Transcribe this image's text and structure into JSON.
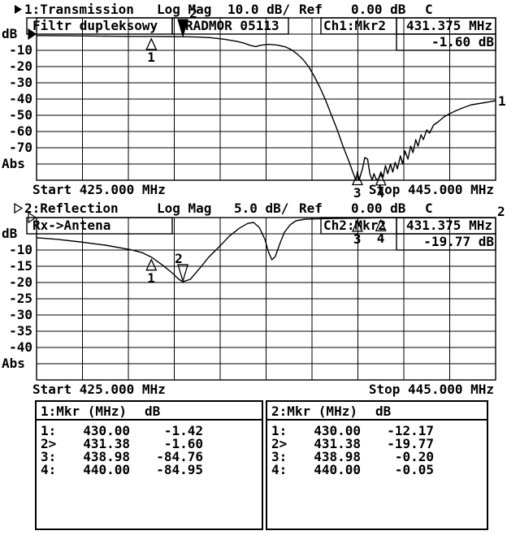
{
  "instrument": "network-analyzer-screen",
  "channels": [
    {
      "header": {
        "label": "1:Transmission",
        "scale": "Log Mag",
        "per_div": "10.0 dB/",
        "ref_label": "Ref",
        "ref_value": "0.00 dB",
        "cal": "C"
      },
      "title": "Filtr dupleksowy",
      "subtitle": "RADMOR 05113",
      "readout": {
        "source": "Ch1:Mkr2",
        "freq": "431.375 MHz",
        "value": "-1.60 dB"
      },
      "y_axis": [
        "dB",
        "-10",
        "-20",
        "-30",
        "-40",
        "-50",
        "-60",
        "-70",
        "Abs"
      ],
      "start": "Start 425.000 MHz",
      "stop": "Stop 445.000 MHz",
      "trace_label": "1",
      "active": true
    },
    {
      "header": {
        "label": "2:Reflection",
        "scale": "Log Mag",
        "per_div": "5.0 dB/",
        "ref_label": "Ref",
        "ref_value": "0.00 dB",
        "cal": "C"
      },
      "title": "Rx->Antena",
      "readout": {
        "source": "Ch2:Mkr2",
        "freq": "431.375 MHz",
        "value": "-19.77 dB"
      },
      "y_axis": [
        "dB",
        "-10",
        "-15",
        "-20",
        "-25",
        "-30",
        "-35",
        "-40",
        "Abs"
      ],
      "start": "Start 425.000 MHz",
      "stop": "Stop 445.000 MHz",
      "trace_label": "2",
      "active": false
    }
  ],
  "chart_data": [
    {
      "type": "line",
      "title": "1:Transmission",
      "ylabel": "dB",
      "xlabel": "MHz",
      "xlim": [
        425,
        445
      ],
      "y_ref": 0,
      "y_per_div": 10,
      "divisions": 10,
      "grid": true,
      "markers": [
        {
          "n": "1",
          "f": 430.0,
          "db": -1.42,
          "active": false
        },
        {
          "n": "2",
          "f": 431.375,
          "db": -1.6,
          "active": true
        },
        {
          "n": "3",
          "f": 438.98,
          "db": -84.76,
          "active": false
        },
        {
          "n": "4",
          "f": 440.0,
          "db": -84.95,
          "active": false
        }
      ],
      "points": [
        [
          425,
          -0.9
        ],
        [
          425.7,
          -0.95
        ],
        [
          426.5,
          -1.05
        ],
        [
          427.3,
          -1.15
        ],
        [
          428.2,
          -1.3
        ],
        [
          429.1,
          -1.38
        ],
        [
          430,
          -1.42
        ],
        [
          430.7,
          -1.5
        ],
        [
          431.375,
          -1.6
        ],
        [
          432,
          -1.8
        ],
        [
          432.6,
          -2.2
        ],
        [
          433.2,
          -3.2
        ],
        [
          433.7,
          -4.4
        ],
        [
          434,
          -5.4
        ],
        [
          434.3,
          -6.9
        ],
        [
          434.55,
          -7.7
        ],
        [
          434.75,
          -6.9
        ],
        [
          435.1,
          -6.3
        ],
        [
          435.5,
          -6.8
        ],
        [
          435.85,
          -7.9
        ],
        [
          436.1,
          -9.6
        ],
        [
          436.35,
          -12.2
        ],
        [
          436.6,
          -15.5
        ],
        [
          436.85,
          -20
        ],
        [
          437.1,
          -26
        ],
        [
          437.35,
          -33
        ],
        [
          437.6,
          -41
        ],
        [
          437.85,
          -50
        ],
        [
          438.1,
          -59
        ],
        [
          438.35,
          -69
        ],
        [
          438.6,
          -78
        ],
        [
          438.8,
          -86
        ],
        [
          438.92,
          -90
        ],
        [
          438.98,
          -84.76
        ],
        [
          439.05,
          -90
        ],
        [
          439.2,
          -83
        ],
        [
          439.3,
          -76
        ],
        [
          439.42,
          -77
        ],
        [
          439.52,
          -86
        ],
        [
          439.62,
          -90
        ],
        [
          439.7,
          -86
        ],
        [
          439.78,
          -89
        ],
        [
          439.88,
          -90
        ],
        [
          440,
          -84.95
        ],
        [
          440.1,
          -88
        ],
        [
          440.2,
          -81
        ],
        [
          440.3,
          -86
        ],
        [
          440.42,
          -80
        ],
        [
          440.52,
          -85
        ],
        [
          440.62,
          -79
        ],
        [
          440.72,
          -83
        ],
        [
          440.85,
          -75
        ],
        [
          440.95,
          -80
        ],
        [
          441.05,
          -72
        ],
        [
          441.18,
          -77
        ],
        [
          441.3,
          -69
        ],
        [
          441.4,
          -73
        ],
        [
          441.52,
          -65
        ],
        [
          441.62,
          -69
        ],
        [
          441.75,
          -62
        ],
        [
          441.85,
          -65
        ],
        [
          442,
          -59
        ],
        [
          442.12,
          -61
        ],
        [
          442.3,
          -56
        ],
        [
          442.5,
          -54
        ],
        [
          442.75,
          -51
        ],
        [
          443,
          -49
        ],
        [
          443.3,
          -47
        ],
        [
          443.65,
          -45
        ],
        [
          443.95,
          -43.5
        ],
        [
          444.4,
          -42.5
        ],
        [
          444.7,
          -41.8
        ],
        [
          445,
          -41
        ]
      ]
    },
    {
      "type": "line",
      "title": "2:Reflection",
      "ylabel": "dB",
      "xlabel": "MHz",
      "xlim": [
        425,
        445
      ],
      "y_ref": 0,
      "y_per_div": 5,
      "divisions": 10,
      "grid": true,
      "markers": [
        {
          "n": "1",
          "f": 430.0,
          "db": -12.17,
          "active": false
        },
        {
          "n": "2",
          "f": 431.375,
          "db": -19.77,
          "active": true
        },
        {
          "n": "3",
          "f": 438.98,
          "db": -0.2,
          "active": false
        },
        {
          "n": "4",
          "f": 440.0,
          "db": -0.05,
          "active": false
        }
      ],
      "points": [
        [
          425,
          -6.2
        ],
        [
          425.9,
          -6.7
        ],
        [
          426.9,
          -7.5
        ],
        [
          428,
          -8.5
        ],
        [
          429.1,
          -9.9
        ],
        [
          429.6,
          -10.8
        ],
        [
          430,
          -12.17
        ],
        [
          430.5,
          -14.7
        ],
        [
          430.9,
          -17
        ],
        [
          431.2,
          -19
        ],
        [
          431.375,
          -19.77
        ],
        [
          431.7,
          -19
        ],
        [
          432.1,
          -15.7
        ],
        [
          432.5,
          -12.2
        ],
        [
          433,
          -8.7
        ],
        [
          433.4,
          -5.7
        ],
        [
          433.85,
          -3.2
        ],
        [
          434.2,
          -1.8
        ],
        [
          434.45,
          -1.5
        ],
        [
          434.7,
          -3
        ],
        [
          434.95,
          -6.7
        ],
        [
          435.1,
          -10.5
        ],
        [
          435.25,
          -13
        ],
        [
          435.4,
          -12
        ],
        [
          435.6,
          -8
        ],
        [
          435.8,
          -4.5
        ],
        [
          436.05,
          -2.2
        ],
        [
          436.3,
          -1
        ],
        [
          436.7,
          -0.5
        ],
        [
          437.2,
          -0.4
        ],
        [
          437.9,
          -0.3
        ],
        [
          438.98,
          -0.2
        ],
        [
          440,
          -0.05
        ],
        [
          441.1,
          -0.1
        ],
        [
          442.2,
          -0.08
        ],
        [
          443.3,
          -0.06
        ],
        [
          444.2,
          -0.05
        ],
        [
          445,
          -0.05
        ]
      ]
    }
  ],
  "tables": [
    {
      "header": {
        "mkr": "1:Mkr (MHz)",
        "unit": "dB"
      },
      "rows": [
        {
          "n": "1:",
          "f": "430.00",
          "db": "-1.42"
        },
        {
          "n": "2>",
          "f": "431.38",
          "db": "-1.60"
        },
        {
          "n": "3:",
          "f": "438.98",
          "db": "-84.76"
        },
        {
          "n": "4:",
          "f": "440.00",
          "db": "-84.95"
        }
      ]
    },
    {
      "header": {
        "mkr": "2:Mkr (MHz)",
        "unit": "dB"
      },
      "rows": [
        {
          "n": "1:",
          "f": "430.00",
          "db": "-12.17"
        },
        {
          "n": "2>",
          "f": "431.38",
          "db": "-19.77"
        },
        {
          "n": "3:",
          "f": "438.98",
          "db": "-0.20"
        },
        {
          "n": "4:",
          "f": "440.00",
          "db": "-0.05"
        }
      ]
    }
  ],
  "colors": {
    "ink": "#000000",
    "paper": "#ffffff"
  }
}
